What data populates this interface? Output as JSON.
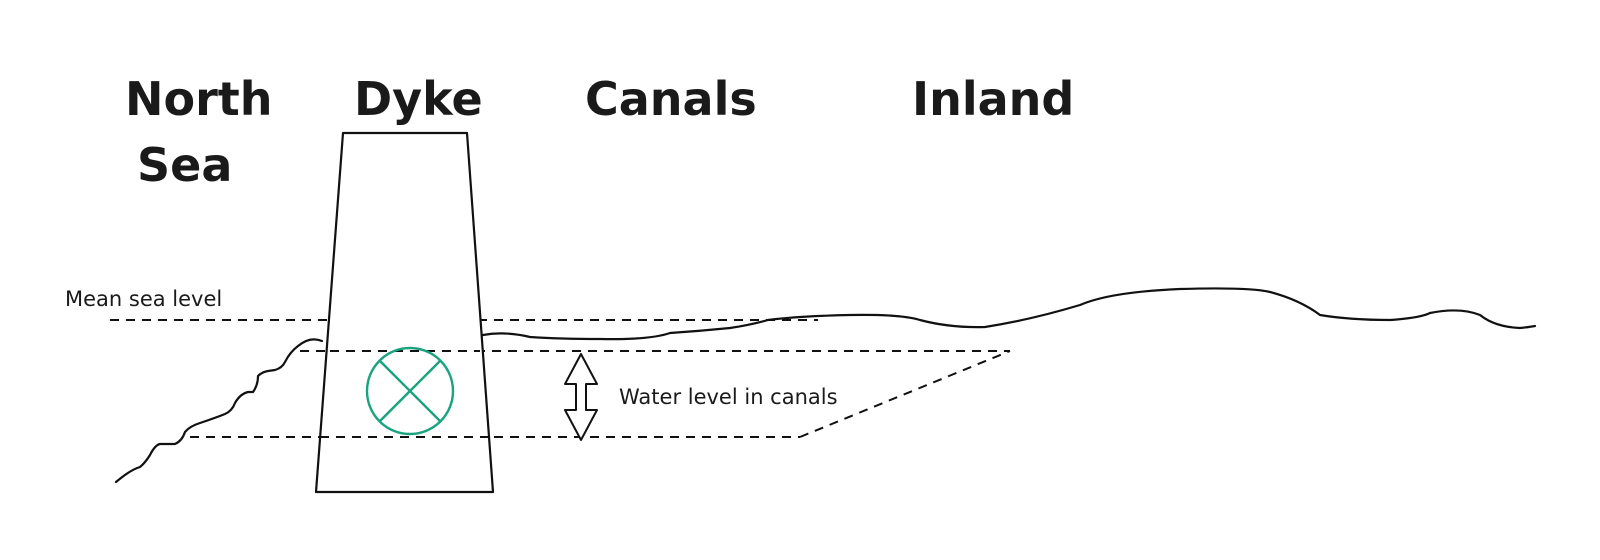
{
  "labels": {
    "north_sea_line1": "North",
    "north_sea_line2": "Sea",
    "dyke": "Dyke",
    "canals": "Canals",
    "inland": "Inland",
    "mean_sea_level": "Mean sea level",
    "water_level": "Water level in canals"
  },
  "colors": {
    "pump": "#1aa37f",
    "line": "#111111"
  },
  "icons": {
    "pump": "pump-symbol-icon",
    "level_range": "double-arrow-icon"
  }
}
